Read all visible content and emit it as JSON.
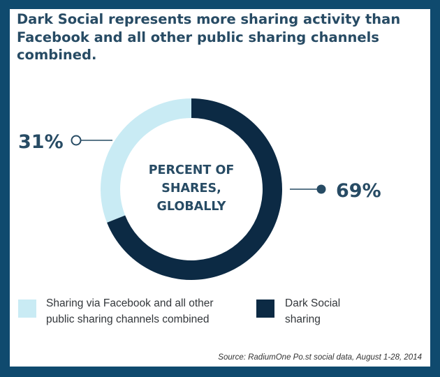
{
  "title": "Dark Social represents more sharing activity than Facebook and all other public sharing channels combined.",
  "center_label": "PERCENT OF SHARES, GLOBALLY",
  "callouts": {
    "left": "31%",
    "right": "69%"
  },
  "legend": [
    {
      "label": "Sharing via Facebook and all other public sharing channels combined",
      "color": "#c9ebf4"
    },
    {
      "label": "Dark Social sharing",
      "color": "#0c2a44"
    }
  ],
  "source": "Source: RadiumOne Po.st social data, August 1-28, 2014",
  "chart_data": {
    "type": "pie",
    "style": "donut",
    "title": "Dark Social represents more sharing activity than Facebook and all other public sharing channels combined.",
    "center_text": "PERCENT OF SHARES, GLOBALLY",
    "categories": [
      "Sharing via Facebook and all other public sharing channels combined",
      "Dark Social sharing"
    ],
    "values": [
      31,
      69
    ],
    "value_labels": [
      "31%",
      "69%"
    ],
    "colors": [
      "#c9ebf4",
      "#0c2a44"
    ],
    "legend": "bottom"
  }
}
